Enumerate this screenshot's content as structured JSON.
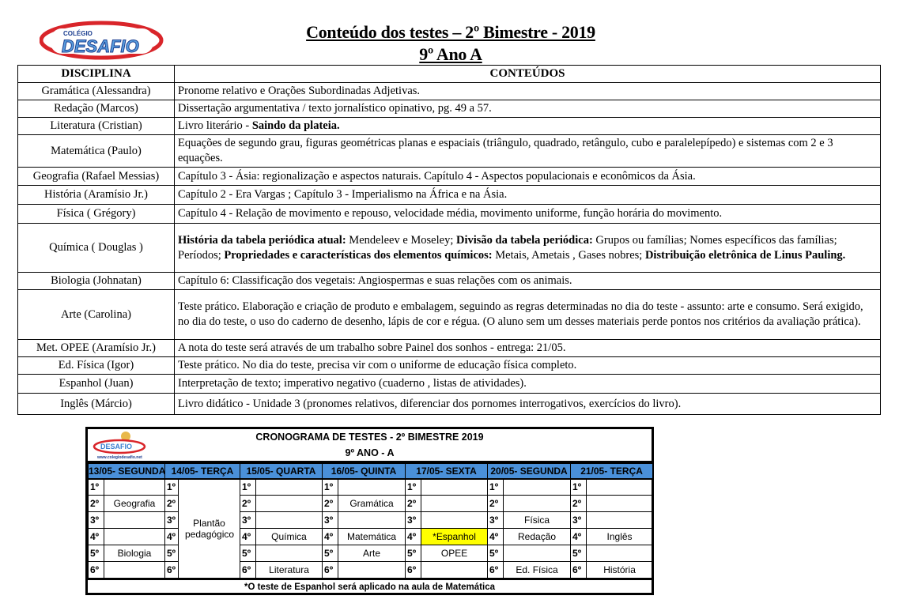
{
  "header": {
    "logo_text_top": "COLÉGIO",
    "logo_text_main": "DESAFIO",
    "title": "Conteúdo dos testes – 2º Bimestre - 2019",
    "subtitle": "9º Ano A"
  },
  "table": {
    "col_discipline": "DISCIPLINA",
    "col_contents": "CONTEÚDOS",
    "rows": [
      {
        "discipline": "Gramática (Alessandra)",
        "segments": [
          {
            "text": "Pronome relativo e Orações Subordinadas Adjetivas.",
            "bold": false
          }
        ]
      },
      {
        "discipline": "Redação (Marcos)",
        "segments": [
          {
            "text": "Dissertação argumentativa / texto jornalístico opinativo, pg. 49 a 57.",
            "bold": false
          }
        ]
      },
      {
        "discipline": "Literatura (Cristian)",
        "segments": [
          {
            "text": "Livro literário - ",
            "bold": false
          },
          {
            "text": "Saindo da plateia.",
            "bold": true
          }
        ]
      },
      {
        "discipline": "Matemática (Paulo)",
        "segments": [
          {
            "text": " Equações de segundo grau, figuras geométricas planas e espaciais (triângulo, quadrado, retângulo, cubo e paralelepípedo) e sistemas com 2 e 3 equações.",
            "bold": false
          }
        ]
      },
      {
        "discipline": "Geografia (Rafael Messias)",
        "segments": [
          {
            "text": "Capítulo 3 - Ásia: regionalização e aspectos naturais. Capítulo 4 - Aspectos populacionais e econômicos da Ásia.",
            "bold": false
          }
        ]
      },
      {
        "discipline": "História (Aramísio Jr.)",
        "segments": [
          {
            "text": "Capítulo 2 - Era Vargas ; Capítulo 3 - Imperialismo na África e na Ásia.",
            "bold": false
          }
        ]
      },
      {
        "discipline": "Física ( Grégory)",
        "segments": [
          {
            "text": "Capítulo 4 - Relação de movimento e repouso, velocidade média, movimento uniforme, função horária do movimento.",
            "bold": false
          }
        ]
      },
      {
        "discipline": "Química ( Douglas )",
        "segments": [
          {
            "text": "História da tabela periódica atual:",
            "bold": true
          },
          {
            "text": " Mendeleev e Moseley; ",
            "bold": false
          },
          {
            "text": "Divisão da tabela periódica:",
            "bold": true
          },
          {
            "text": " Grupos ou famílias; Nomes específicos das famílias; Períodos; ",
            "bold": false
          },
          {
            "text": "Propriedades e características dos elementos químicos:",
            "bold": true
          },
          {
            "text": " Metais, Ametais , Gases nobres; ",
            "bold": false
          },
          {
            "text": "Distribuição eletrônica de Linus Pauling.",
            "bold": true
          }
        ]
      },
      {
        "discipline": "Biologia (Johnatan)",
        "segments": [
          {
            "text": "Capítulo 6: Classificação dos vegetais: Angiospermas e suas relações com os animais.",
            "bold": false
          }
        ]
      },
      {
        "discipline": "Arte (Carolina)",
        "segments": [
          {
            "text": " Teste prático. Elaboração e criação de produto e embalagem, seguindo as regras determinadas no dia do teste -  assunto: arte e consumo. Será exigido, no dia do teste, o uso do caderno de desenho, lápis de cor e régua. (O aluno sem um desses materiais perde pontos nos critérios da avaliação prática).",
            "bold": false
          }
        ]
      },
      {
        "discipline": "Met. OPEE (Aramísio Jr.)",
        "segments": [
          {
            "text": "A nota do teste será através de um trabalho sobre Painel dos sonhos - entrega: 21/05.",
            "bold": false
          }
        ]
      },
      {
        "discipline": "Ed. Física (Igor)",
        "segments": [
          {
            "text": "Teste prático. No dia do teste, precisa vir com o uniforme de educação física completo.",
            "bold": false
          }
        ]
      },
      {
        "discipline": "Espanhol (Juan)",
        "segments": [
          {
            "text": "Interpretação de texto; imperativo negativo (cuaderno , listas de atividades).",
            "bold": false
          }
        ]
      },
      {
        "discipline": "Inglês (Márcio)",
        "segments": [
          {
            "text": "Livro didático - Unidade 3 (pronomes relativos, diferenciar dos pornomes interrogativos, exercícios do livro).",
            "bold": false
          }
        ]
      }
    ]
  },
  "schedule": {
    "logo_url_text": "www.colegiodesafio.net",
    "title": "CRONOGRAMA DE TESTES  - 2º BIMESTRE 2019",
    "subtitle": "9º ANO - A",
    "highlight_color": "#ffff00",
    "header_color": "#4a90d9",
    "periods": [
      "1º",
      "2º",
      "3º",
      "4º",
      "5º",
      "6º"
    ],
    "days": [
      {
        "label": "13/05- SEGUNDA",
        "slots": [
          "",
          "Geografia",
          "",
          "",
          "Biologia",
          ""
        ]
      },
      {
        "label": "14/05- TERÇA",
        "merged": "Plantão pedagógico"
      },
      {
        "label": "15/05- QUARTA",
        "slots": [
          "",
          "",
          "",
          "Química",
          "",
          "Literatura"
        ]
      },
      {
        "label": "16/05- QUINTA",
        "slots": [
          "",
          "Gramática",
          "",
          "Matemática",
          "Arte",
          ""
        ]
      },
      {
        "label": "17/05- SEXTA",
        "slots": [
          "",
          "",
          "",
          "*Espanhol",
          "OPEE",
          ""
        ],
        "highlight_slot": 3
      },
      {
        "label": "20/05- SEGUNDA",
        "slots": [
          "",
          "",
          "Física",
          "Redação",
          "",
          "Ed. Física"
        ]
      },
      {
        "label": "21/05- TERÇA",
        "slots": [
          "",
          "",
          "",
          "Inglês",
          "",
          "História"
        ]
      }
    ],
    "footnote": "*O teste de Espanhol será aplicado na aula de Matemática"
  }
}
